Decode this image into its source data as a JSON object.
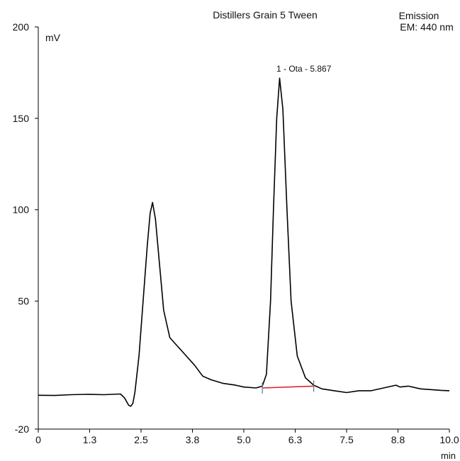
{
  "chart_data": {
    "type": "line",
    "title": "Distillers Grain 5 Tween",
    "detector_line1": "Emission",
    "detector_line2": "EM: 440 nm",
    "ylabel": "mV",
    "xlabel": "min",
    "xlim": [
      0,
      10.0
    ],
    "ylim": [
      -20,
      200
    ],
    "x_ticks": [
      "0",
      "1.3",
      "2.5",
      "3.8",
      "5.0",
      "6.3",
      "7.5",
      "8.8",
      "10.0"
    ],
    "y_ticks": [
      {
        "label": "200",
        "value": 200
      },
      {
        "label": "150",
        "value": 150
      },
      {
        "label": "100",
        "value": 100
      },
      {
        "label": "50",
        "value": 50
      },
      {
        "label": "-20",
        "value": -20
      }
    ],
    "peak_label": "1 - Ota - 5.867",
    "series": [
      {
        "color": "#000000",
        "x": [
          0.0,
          0.4,
          0.8,
          1.2,
          1.6,
          2.0,
          2.1,
          2.2,
          2.25,
          2.3,
          2.35,
          2.45,
          2.55,
          2.65,
          2.72,
          2.78,
          2.85,
          2.95,
          3.05,
          3.2,
          3.4,
          3.6,
          3.8,
          4.0,
          4.2,
          4.5,
          4.8,
          5.0,
          5.3,
          5.45,
          5.55,
          5.65,
          5.72,
          5.8,
          5.87,
          5.95,
          6.05,
          6.15,
          6.3,
          6.5,
          6.7,
          6.9,
          7.2,
          7.5,
          7.8,
          8.1,
          8.4,
          8.7,
          8.8,
          9.0,
          9.3,
          9.6,
          9.8,
          10.0
        ],
        "y": [
          -1.5,
          -1.6,
          -1.2,
          -1.0,
          -1.2,
          -0.8,
          -3.0,
          -7.0,
          -7.5,
          -6.0,
          0.0,
          20.0,
          50.0,
          80.0,
          98.0,
          104.0,
          95.0,
          70.0,
          45.0,
          30.0,
          25.0,
          20.0,
          15.0,
          9.0,
          7.0,
          5.0,
          4.0,
          3.0,
          2.5,
          3.5,
          10.0,
          50.0,
          100.0,
          150.0,
          172.0,
          155.0,
          100.0,
          50.0,
          20.0,
          8.0,
          4.0,
          2.0,
          1.0,
          0.0,
          1.0,
          1.0,
          2.5,
          4.0,
          3.0,
          3.5,
          2.0,
          1.5,
          1.2,
          1.0
        ]
      }
    ],
    "baseline": {
      "x": [
        5.45,
        6.7
      ],
      "y": [
        2.5,
        3.5
      ],
      "color": "#e02020"
    },
    "baseline_ticks_x": [
      5.45,
      6.7
    ],
    "axis_color": "#000000",
    "tick_marker_color": "#5577aa"
  }
}
